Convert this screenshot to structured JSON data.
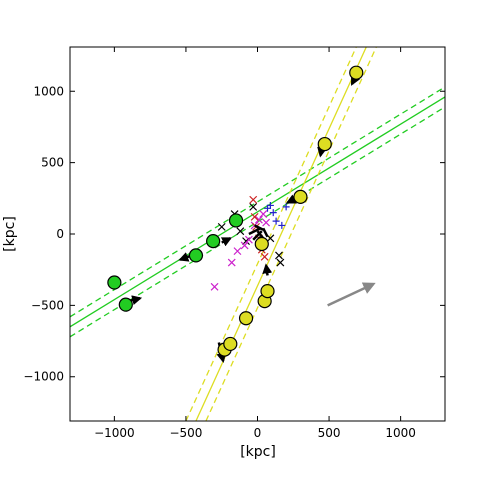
{
  "chart_data": {
    "type": "scatter",
    "title": "",
    "xlabel": "[kpc]",
    "ylabel": "[kpc]",
    "xlim": [
      -1310,
      1310
    ],
    "ylim": [
      -1310,
      1310
    ],
    "grid": false,
    "x_ticks": [
      -1000,
      -500,
      0,
      500,
      1000
    ],
    "x_tick_labels": [
      "−1000",
      "−500",
      "0",
      "500",
      "1000"
    ],
    "y_ticks": [
      -1000,
      -500,
      0,
      500,
      1000
    ],
    "y_tick_labels": [
      "−1000",
      "−500",
      "0",
      "500",
      "1000"
    ],
    "colors": {
      "green": "#22cc22",
      "yellow": "#dddd22",
      "gray_arrow": "#888888",
      "black": "#000000",
      "magenta": "#cc22cc",
      "red": "#cc2222",
      "blue": "#2222cc"
    },
    "lines": [
      {
        "color": "green",
        "style": "solid",
        "points": [
          [
            -1310,
            -650
          ],
          [
            1310,
            960
          ]
        ]
      },
      {
        "color": "green",
        "style": "dashed",
        "points": [
          [
            -1310,
            -580
          ],
          [
            1310,
            1030
          ]
        ]
      },
      {
        "color": "green",
        "style": "dashed",
        "points": [
          [
            -1310,
            -720
          ],
          [
            1310,
            890
          ]
        ]
      },
      {
        "color": "yellow",
        "style": "solid",
        "points": [
          [
            -430,
            -1310
          ],
          [
            760,
            1310
          ]
        ]
      },
      {
        "color": "yellow",
        "style": "dashed",
        "points": [
          [
            -500,
            -1310
          ],
          [
            690,
            1310
          ]
        ]
      },
      {
        "color": "yellow",
        "style": "dashed",
        "points": [
          [
            -360,
            -1310
          ],
          [
            830,
            1310
          ]
        ]
      }
    ],
    "series": [
      {
        "color": "green",
        "marker": "circle",
        "points": [
          [
            -1000,
            -340,
            0.88,
            0.47
          ],
          [
            -920,
            -495,
            0.88,
            0.47
          ],
          [
            -430,
            -150,
            0.88,
            0.47
          ],
          [
            -310,
            -50,
            0.88,
            0.47
          ],
          [
            -150,
            95,
            0.88,
            0.47
          ]
        ]
      },
      {
        "color": "yellow",
        "marker": "circle",
        "points": [
          [
            -230,
            -810,
            0.5,
            0.87
          ],
          [
            -190,
            -770,
            0.5,
            0.87
          ],
          [
            -80,
            -590,
            0.5,
            0.87
          ],
          [
            50,
            -470,
            0.5,
            0.87
          ],
          [
            70,
            -400,
            0.5,
            0.87
          ],
          [
            30,
            -70,
            0.5,
            0.87
          ],
          [
            300,
            260,
            0.5,
            0.87
          ],
          [
            470,
            630,
            0.5,
            0.87
          ],
          [
            690,
            1130,
            0.5,
            0.87
          ]
        ]
      },
      {
        "color": "black",
        "marker": "x",
        "points": [
          [
            -250,
            50
          ],
          [
            -160,
            140
          ],
          [
            -120,
            20
          ],
          [
            -80,
            -50
          ],
          [
            40,
            -80
          ],
          [
            90,
            -30
          ],
          [
            150,
            -150
          ],
          [
            160,
            -200
          ],
          [
            -30,
            190
          ]
        ]
      },
      {
        "color": "magenta",
        "marker": "x",
        "points": [
          [
            -300,
            -370
          ],
          [
            -180,
            -200
          ],
          [
            -140,
            -120
          ],
          [
            -90,
            -80
          ],
          [
            -60,
            -40
          ],
          [
            -20,
            60
          ],
          [
            10,
            100
          ],
          [
            40,
            140
          ],
          [
            60,
            80
          ]
        ]
      },
      {
        "color": "red",
        "marker": "x",
        "points": [
          [
            -30,
            240
          ],
          [
            -20,
            120
          ],
          [
            -10,
            50
          ],
          [
            10,
            -30
          ],
          [
            30,
            -110
          ],
          [
            50,
            -160
          ]
        ]
      },
      {
        "color": "blue",
        "marker": "plus",
        "points": [
          [
            70,
            180
          ],
          [
            90,
            200
          ],
          [
            110,
            150
          ],
          [
            130,
            90
          ],
          [
            170,
            60
          ],
          [
            200,
            190
          ]
        ]
      }
    ],
    "velocity_arrows": [
      {
        "from": [
          -900,
          -470
        ],
        "to": [
          -820,
          -450
        ]
      },
      {
        "from": [
          -460,
          -150
        ],
        "to": [
          -540,
          -180
        ]
      },
      {
        "from": [
          -250,
          -60
        ],
        "to": [
          -190,
          -30
        ]
      },
      {
        "from": [
          -270,
          -760
        ],
        "to": [
          -240,
          -890
        ]
      },
      {
        "from": [
          70,
          -290
        ],
        "to": [
          60,
          -220
        ]
      },
      {
        "from": [
          270,
          250
        ],
        "to": [
          210,
          220
        ]
      },
      {
        "from": [
          450,
          600
        ],
        "to": [
          440,
          550
        ]
      },
      {
        "from": [
          680,
          1090
        ],
        "to": [
          660,
          1050
        ]
      }
    ],
    "scale_arrow": {
      "from": [
        490,
        -500
      ],
      "to": [
        810,
        -350
      ]
    }
  }
}
